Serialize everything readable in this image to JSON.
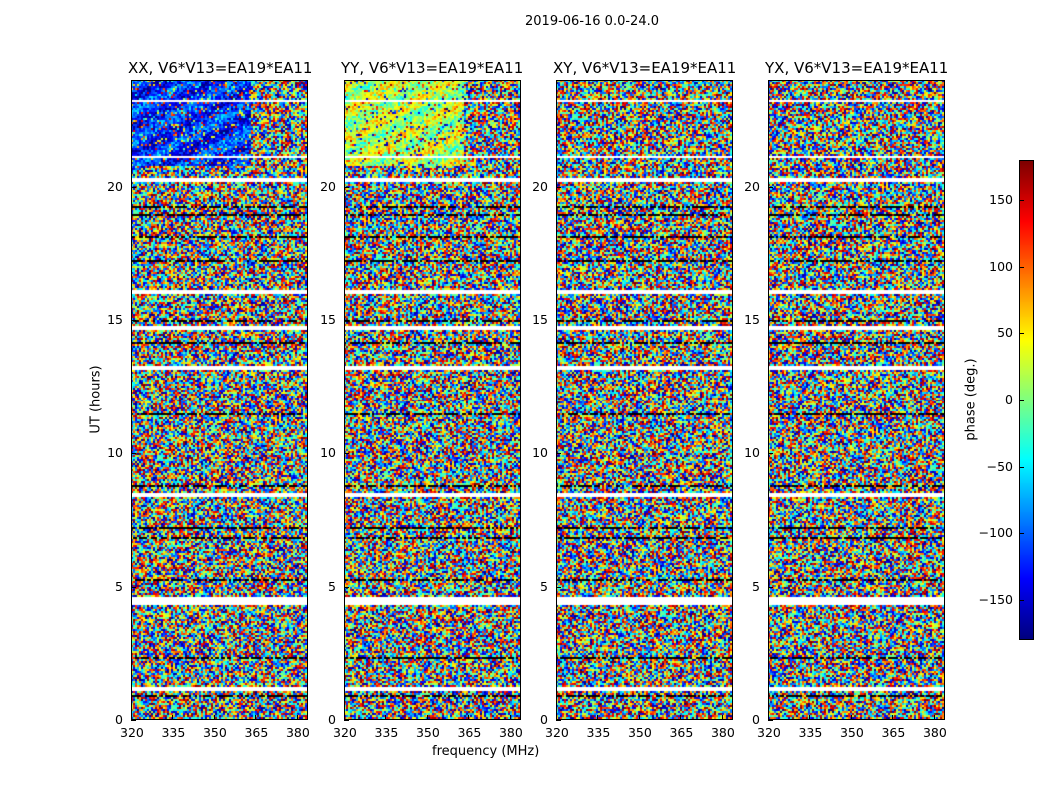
{
  "suptitle": "2019-06-16 0.0-24.0",
  "chart_data": {
    "type": "heatmap",
    "xlabel": "frequency (MHz)",
    "ylabel": "UT (hours)",
    "xlim": [
      320,
      384
    ],
    "ylim": [
      0,
      24
    ],
    "xticks": [
      "320",
      "335",
      "350",
      "365",
      "380"
    ],
    "xtick_values": [
      320,
      335,
      350,
      365,
      380
    ],
    "yticks": [
      "0",
      "5",
      "10",
      "15",
      "20"
    ],
    "ytick_values": [
      0,
      5,
      10,
      15,
      20
    ],
    "panels": [
      {
        "title": "XX, V6*V13=EA19*EA11",
        "coherent_phase": -120
      },
      {
        "title": "YY, V6*V13=EA19*EA11",
        "coherent_phase": 20
      },
      {
        "title": "XY, V6*V13=EA19*EA11",
        "coherent_phase": null
      },
      {
        "title": "YX, V6*V13=EA19*EA11",
        "coherent_phase": null
      }
    ],
    "coherent_hours": [
      20.8,
      24
    ],
    "flagged_hours": [
      [
        1.05,
        1.2
      ],
      [
        4.25,
        4.55
      ],
      [
        8.3,
        8.45
      ],
      [
        13.1,
        13.25
      ],
      [
        14.6,
        14.75
      ],
      [
        16.0,
        16.1
      ],
      [
        20.2,
        20.35
      ],
      [
        21.1,
        21.15
      ],
      [
        22.4,
        22.45
      ],
      [
        23.2,
        23.25
      ]
    ],
    "colorbar": {
      "label": "phase (deg.)",
      "range": [
        -180,
        180
      ],
      "ticks": [
        "150",
        "100",
        "50",
        "0",
        "−50",
        "−100",
        "−150"
      ],
      "tick_values": [
        150,
        100,
        50,
        0,
        -50,
        -100,
        -150
      ],
      "colormap": "jet"
    }
  }
}
